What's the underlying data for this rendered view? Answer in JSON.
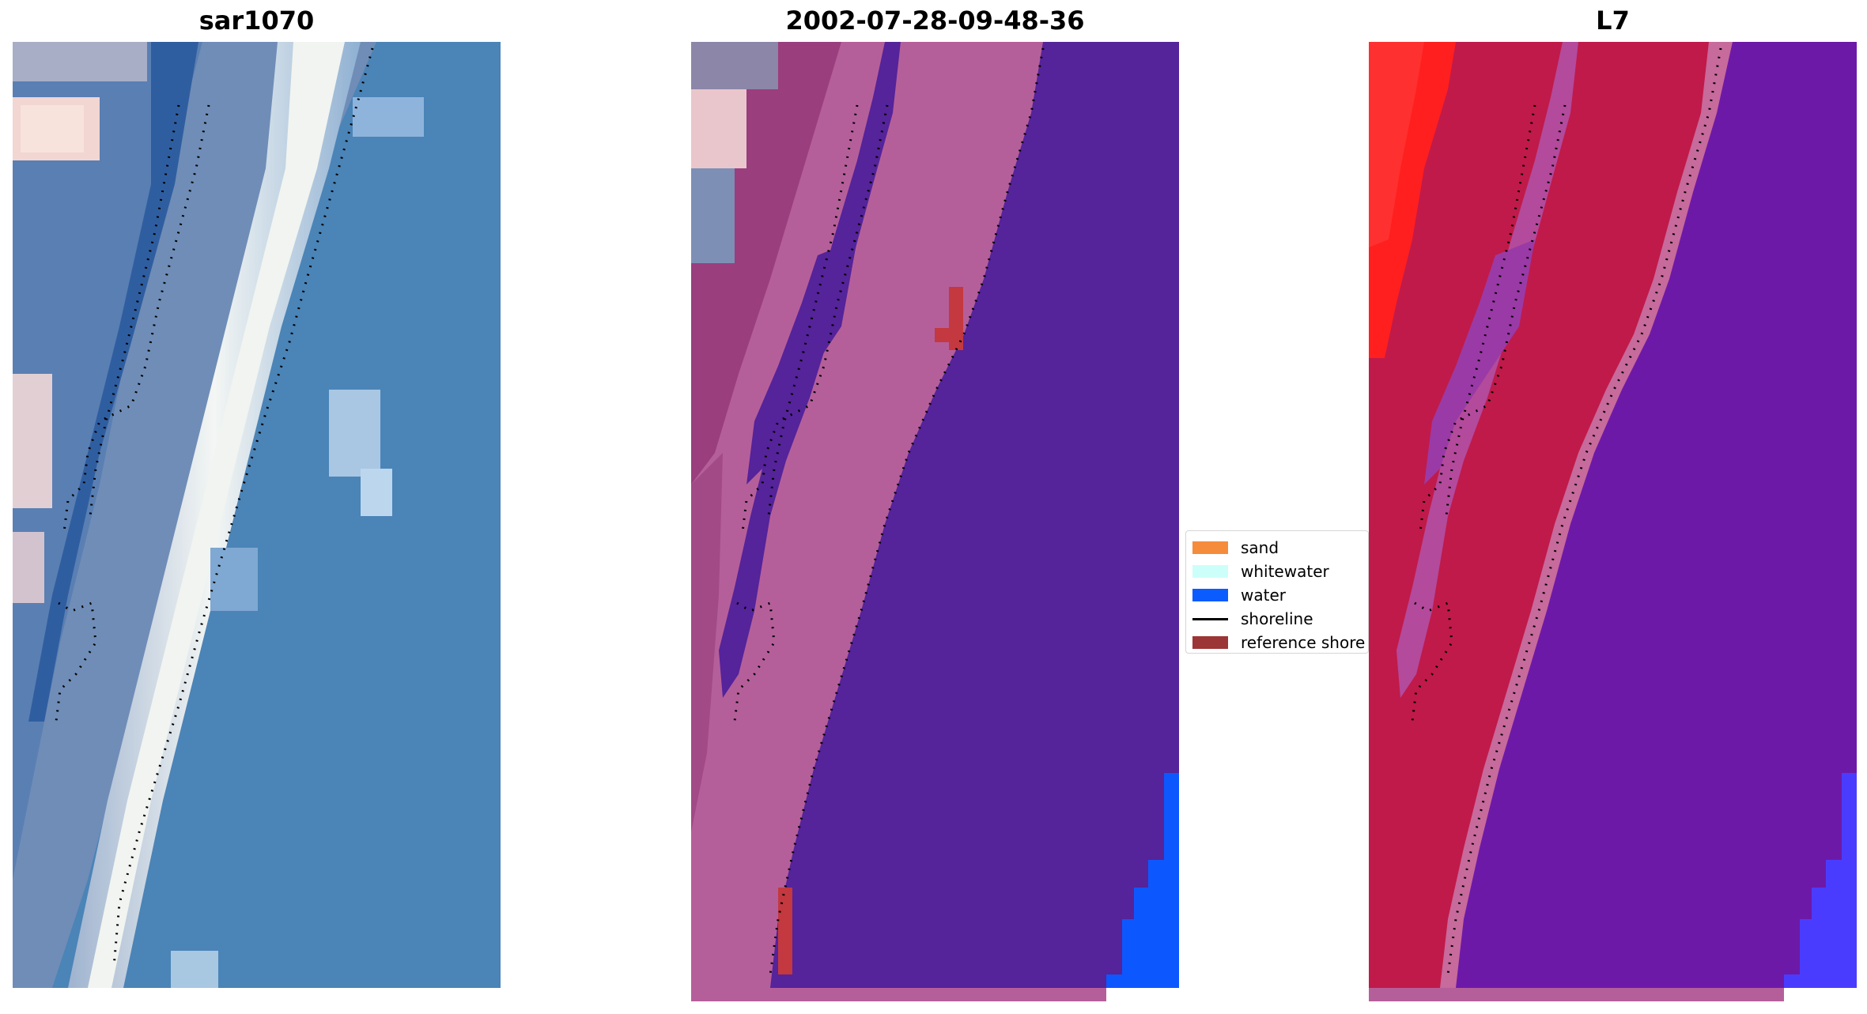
{
  "panels": [
    {
      "title": "sar1070",
      "view": "rgb"
    },
    {
      "title": "2002-07-28-09-48-36",
      "view": "classified"
    },
    {
      "title": "L7",
      "view": "mndwi"
    }
  ],
  "legend": {
    "items": [
      {
        "label": "sand",
        "color": "#f58c3c",
        "kind": "patch"
      },
      {
        "label": "whitewater",
        "color": "#ccfffa",
        "kind": "patch"
      },
      {
        "label": "water",
        "color": "#0b5cff",
        "kind": "patch"
      },
      {
        "label": "shoreline",
        "color": "#000000",
        "kind": "line"
      },
      {
        "label": "reference shore",
        "color": "#9c3535",
        "kind": "patch"
      }
    ]
  },
  "colors": {
    "ocean_rgb": "#4a84b8",
    "surf_rgb": "#eef2f0",
    "class_water": "#55239a",
    "class_land": "#b55f9a",
    "class_reference": "#c4383f",
    "water_bright": "#0d57ff",
    "index_land": "#c01a4a",
    "index_water": "#6d19a8",
    "index_high": "#ff1a1a"
  }
}
